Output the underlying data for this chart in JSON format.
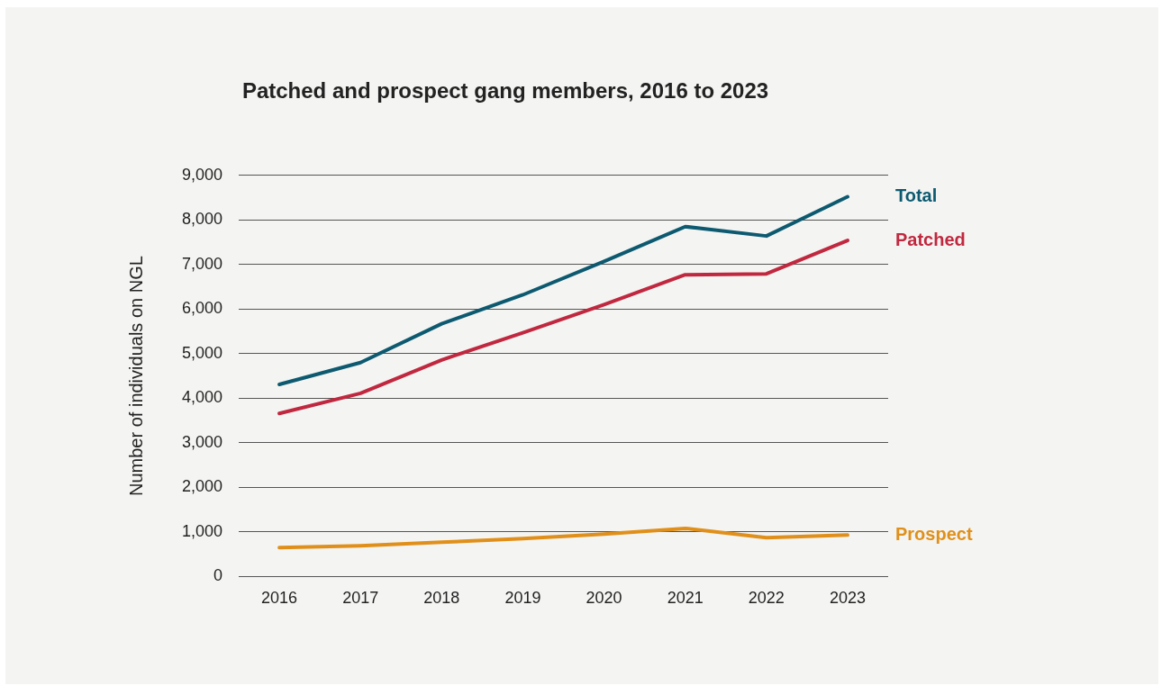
{
  "chart_data": {
    "type": "line",
    "title": "Patched and prospect gang members, 2016 to 2023",
    "ylabel": "Number of individuals on NGL",
    "categories": [
      "2016",
      "2017",
      "2018",
      "2019",
      "2020",
      "2021",
      "2022",
      "2023"
    ],
    "series": [
      {
        "name": "Total",
        "color": "#0d5a70",
        "values": [
          4310,
          4800,
          5670,
          6320,
          7070,
          7850,
          7640,
          8520
        ]
      },
      {
        "name": "Patched",
        "color": "#c0283f",
        "values": [
          3660,
          4110,
          4860,
          5470,
          6100,
          6770,
          6790,
          7540
        ]
      },
      {
        "name": "Prospect",
        "color": "#e0901a",
        "values": [
          650,
          690,
          770,
          850,
          950,
          1080,
          870,
          930
        ]
      }
    ],
    "ylim": [
      0,
      9000
    ],
    "yticks": [
      0,
      {
        "value": 1000,
        "label": "1,000"
      },
      {
        "value": 2000,
        "label": "2,000"
      },
      {
        "value": 3000,
        "label": "3,000"
      },
      {
        "value": 4000,
        "label": "4,000"
      },
      {
        "value": 5000,
        "label": "5,000"
      },
      {
        "value": 6000,
        "label": "6,000"
      },
      {
        "value": 7000,
        "label": "7,000"
      },
      {
        "value": 8000,
        "label": "8,000"
      },
      {
        "value": 9000,
        "label": "9,000"
      }
    ],
    "grid": "y",
    "legend": false,
    "marker": "none",
    "line_style": "solid"
  }
}
